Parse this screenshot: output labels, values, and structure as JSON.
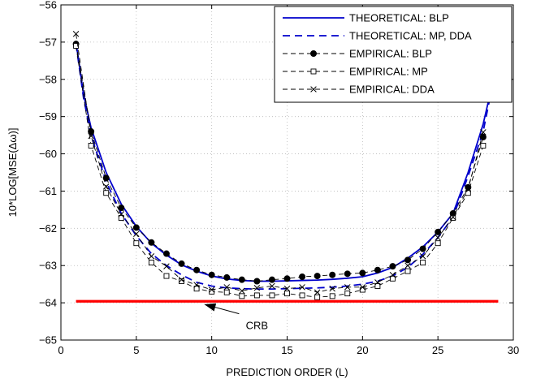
{
  "chart_data": {
    "type": "line",
    "title": "",
    "xlabel": "PREDICTION ORDER (L)",
    "ylabel": "10*LOG[MSE(Δω)]",
    "xlim": [
      0,
      30
    ],
    "ylim": [
      -65,
      -56
    ],
    "xticks": [
      0,
      5,
      10,
      15,
      20,
      25,
      30
    ],
    "yticks": [
      -65,
      -64,
      -63,
      -62,
      -61,
      -60,
      -59,
      -58,
      -57,
      -56
    ],
    "grid": "dotted",
    "legend_position": "top-right",
    "series": [
      {
        "name": "THEORETICAL: BLP",
        "style": "solid",
        "color": "#0000cc",
        "marker": "none",
        "x": [
          1,
          1.5,
          2,
          3,
          4,
          5,
          6,
          7,
          8,
          9,
          10,
          11,
          12,
          13,
          14,
          15,
          16,
          17,
          18,
          19,
          20,
          21,
          22,
          23,
          24,
          25,
          26,
          27,
          28,
          28.4
        ],
        "y": [
          -57.0,
          -58.4,
          -59.3,
          -60.5,
          -61.35,
          -61.95,
          -62.4,
          -62.72,
          -62.98,
          -63.15,
          -63.28,
          -63.36,
          -63.4,
          -63.42,
          -63.42,
          -63.41,
          -63.4,
          -63.39,
          -63.37,
          -63.34,
          -63.3,
          -63.2,
          -63.05,
          -62.8,
          -62.5,
          -62.1,
          -61.6,
          -60.5,
          -59.2,
          -58.5
        ]
      },
      {
        "name": "THEORETICAL: MP, DDA",
        "style": "dashed",
        "color": "#0000cc",
        "marker": "none",
        "x": [
          1,
          1.5,
          2,
          3,
          4,
          5,
          6,
          7,
          8,
          9,
          10,
          11,
          12,
          13,
          14,
          15,
          16,
          17,
          18,
          19,
          20,
          21,
          22,
          23,
          24,
          25,
          26,
          27,
          28,
          28.4
        ],
        "y": [
          -57.05,
          -58.5,
          -59.5,
          -60.75,
          -61.6,
          -62.2,
          -62.68,
          -63.0,
          -63.25,
          -63.45,
          -63.55,
          -63.6,
          -63.62,
          -63.63,
          -63.63,
          -63.62,
          -63.61,
          -63.6,
          -63.58,
          -63.55,
          -63.5,
          -63.42,
          -63.28,
          -63.05,
          -62.7,
          -62.25,
          -61.7,
          -60.6,
          -59.4,
          -58.6
        ]
      },
      {
        "name": "EMPIRICAL: BLP",
        "style": "dashed",
        "color": "#000000",
        "marker": "filled-circle",
        "x": [
          1,
          2,
          3,
          4,
          5,
          6,
          7,
          8,
          9,
          10,
          11,
          12,
          13,
          14,
          15,
          16,
          17,
          18,
          19,
          20,
          21,
          22,
          23,
          24,
          25,
          26,
          27,
          28
        ],
        "y": [
          -57.05,
          -59.4,
          -60.65,
          -61.45,
          -61.98,
          -62.38,
          -62.68,
          -62.95,
          -63.12,
          -63.25,
          -63.32,
          -63.38,
          -63.42,
          -63.38,
          -63.35,
          -63.3,
          -63.28,
          -63.25,
          -63.22,
          -63.2,
          -63.12,
          -63.02,
          -62.85,
          -62.55,
          -62.1,
          -61.6,
          -60.9,
          -59.55
        ]
      },
      {
        "name": "EMPIRICAL: MP",
        "style": "dashed",
        "color": "#000000",
        "marker": "open-square",
        "x": [
          1,
          2,
          3,
          4,
          5,
          6,
          7,
          8,
          9,
          10,
          11,
          12,
          13,
          14,
          15,
          16,
          17,
          18,
          19,
          20,
          21,
          22,
          23,
          24,
          25,
          26,
          27,
          28
        ],
        "y": [
          -57.1,
          -59.78,
          -61.05,
          -61.72,
          -62.4,
          -62.92,
          -63.28,
          -63.42,
          -63.62,
          -63.7,
          -63.72,
          -63.82,
          -63.8,
          -63.8,
          -63.75,
          -63.8,
          -63.85,
          -63.82,
          -63.75,
          -63.65,
          -63.55,
          -63.35,
          -63.15,
          -62.92,
          -62.4,
          -61.72,
          -61.05,
          -59.78
        ]
      },
      {
        "name": "EMPIRICAL: DDA",
        "style": "dashed",
        "color": "#000000",
        "marker": "x",
        "x": [
          1,
          2,
          3,
          4,
          5,
          6,
          7,
          8,
          9,
          10,
          11,
          12,
          13,
          14,
          15,
          16,
          17,
          18,
          19,
          20,
          21,
          22,
          23,
          24,
          25,
          26,
          27,
          28
        ],
        "y": [
          -56.78,
          -59.52,
          -60.88,
          -61.62,
          -62.15,
          -62.75,
          -63.02,
          -63.38,
          -63.52,
          -63.65,
          -63.58,
          -63.68,
          -63.6,
          -63.55,
          -63.62,
          -63.58,
          -63.72,
          -63.62,
          -63.58,
          -63.58,
          -63.45,
          -63.25,
          -63.0,
          -62.75,
          -62.25,
          -61.7,
          -60.95,
          -59.42
        ]
      },
      {
        "name": "CRB",
        "style": "solid",
        "color": "#ff0000",
        "marker": "none",
        "legend": false,
        "x": [
          1,
          29
        ],
        "y": [
          -63.96,
          -63.96
        ]
      }
    ],
    "annotations": [
      {
        "text": "CRB",
        "x": 13.0,
        "y": -64.6,
        "arrow_to": [
          9.5,
          -64.04
        ]
      }
    ]
  }
}
